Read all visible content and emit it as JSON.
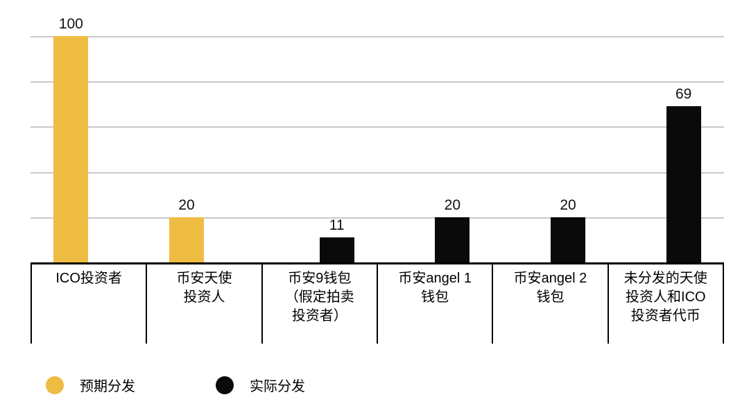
{
  "chart_data": {
    "type": "bar",
    "categories": [
      "ICO投资者",
      "币安天使投资人",
      "币安9钱包（假定拍卖投资者）",
      "币安angel 1钱包",
      "币安angel 2钱包",
      "未分发的天使投资人和ICO投资者代币"
    ],
    "category_lines": [
      [
        "ICO投资者"
      ],
      [
        "币安天使",
        "投资人"
      ],
      [
        "币安9钱包",
        "（假定拍卖",
        "投资者）"
      ],
      [
        "币安angel 1",
        "钱包"
      ],
      [
        "币安angel 2",
        "钱包"
      ],
      [
        "未分发的天使",
        "投资人和ICO",
        "投资者代币"
      ]
    ],
    "series": [
      {
        "name": "预期分发",
        "color": "#EFBC43",
        "values": [
          100,
          20,
          null,
          null,
          null,
          null
        ]
      },
      {
        "name": "实际分发",
        "color": "#0a0a0a",
        "values": [
          null,
          null,
          11,
          20,
          20,
          69
        ]
      }
    ],
    "ylim": [
      0,
      100
    ],
    "gridline_values": [
      100,
      80,
      60,
      40,
      20,
      0
    ],
    "grid": "horizontal",
    "legend_position": "bottom-left"
  },
  "colors": {
    "expected": "#EFBC43",
    "actual": "#0a0a0a",
    "gridline": "#c9c9cc",
    "axis": "#000000",
    "background": "#ffffff"
  }
}
